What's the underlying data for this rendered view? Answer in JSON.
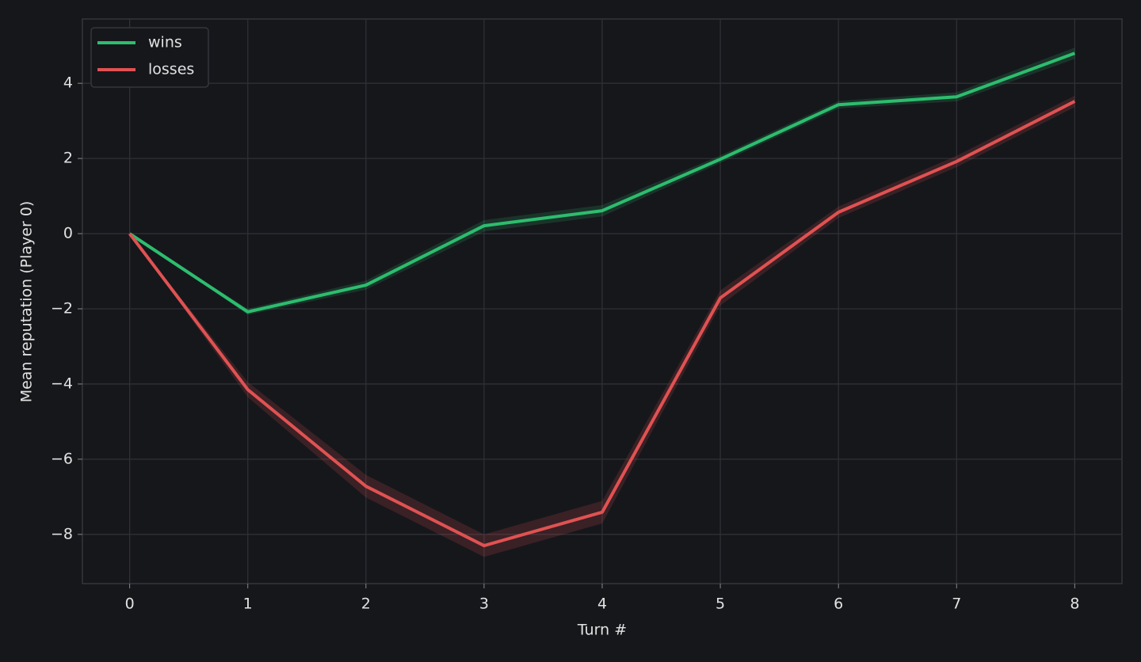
{
  "chart_data": {
    "type": "line",
    "xlabel": "Turn #",
    "ylabel": "Mean reputation (Player 0)",
    "x": [
      0,
      1,
      2,
      3,
      4,
      5,
      6,
      7,
      8
    ],
    "series": [
      {
        "name": "wins",
        "color": "#2dbd6e",
        "values": [
          0,
          -2.08,
          -1.37,
          0.21,
          0.61,
          1.98,
          3.43,
          3.64,
          4.8
        ],
        "error": [
          0,
          0.08,
          0.12,
          0.15,
          0.15,
          0.1,
          0.1,
          0.12,
          0.15
        ]
      },
      {
        "name": "losses",
        "color": "#e05252",
        "values": [
          0,
          -4.15,
          -6.72,
          -8.3,
          -7.41,
          -1.71,
          0.57,
          1.92,
          3.52
        ],
        "error": [
          0,
          0.2,
          0.3,
          0.3,
          0.3,
          0.2,
          0.15,
          0.15,
          0.15
        ]
      }
    ],
    "xlim": [
      -0.4,
      8.4
    ],
    "ylim": [
      -9.31,
      5.71
    ],
    "xticks": [
      0,
      1,
      2,
      3,
      4,
      5,
      6,
      7,
      8
    ],
    "yticks": [
      {
        "value": -8,
        "label": "−8"
      },
      {
        "value": -6,
        "label": "−6"
      },
      {
        "value": -4,
        "label": "−4"
      },
      {
        "value": -2,
        "label": "−2"
      },
      0,
      2,
      4
    ],
    "grid": true,
    "legend": "upper left"
  }
}
